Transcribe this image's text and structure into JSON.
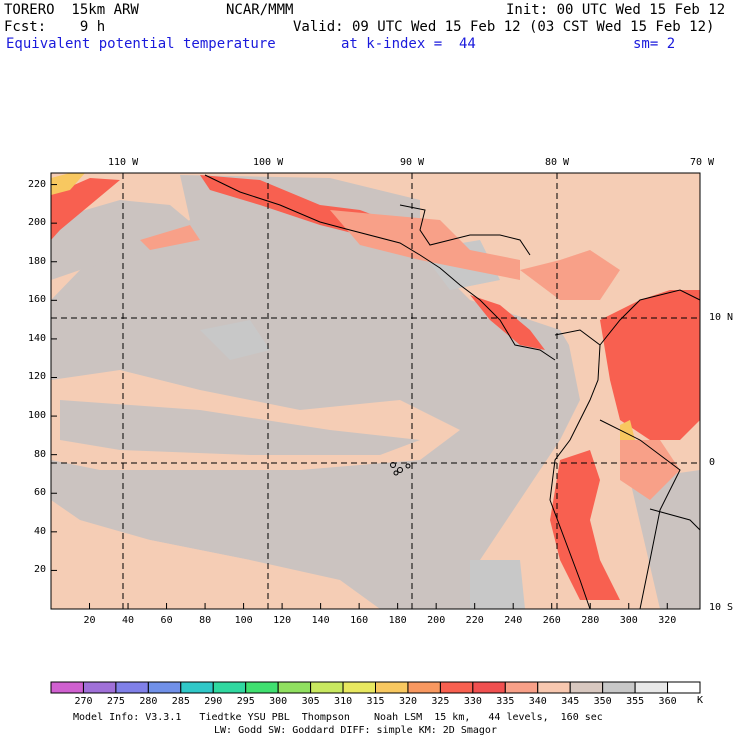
{
  "header": {
    "model": "TORERO  15km ARW",
    "agency": "NCAR/MMM",
    "init": "Init: 00 UTC Wed 15 Feb 12",
    "fcst": "Fcst:    9 h",
    "valid": "Valid: 09 UTC Wed 15 Feb 12 (03 CST Wed 15 Feb 12)",
    "field": "Equivalent potential temperature",
    "level": "at k-index =  44",
    "smooth": "sm= 2"
  },
  "map": {
    "lon_labels": [
      "110 W",
      "100 W",
      "90 W",
      "80 W",
      "70 W"
    ],
    "lat_labels": [
      "10 N",
      "0",
      "10 S"
    ],
    "x_ticks": [
      "20",
      "40",
      "60",
      "80",
      "100",
      "120",
      "140",
      "160",
      "180",
      "200",
      "220",
      "240",
      "260",
      "280",
      "300",
      "320"
    ],
    "y_ticks": [
      "20",
      "40",
      "60",
      "80",
      "100",
      "120",
      "140",
      "160",
      "180",
      "200",
      "220"
    ]
  },
  "colorbar": {
    "labels": [
      "270",
      "275",
      "280",
      "285",
      "290",
      "295",
      "300",
      "305",
      "310",
      "315",
      "320",
      "325",
      "330",
      "335",
      "340",
      "345",
      "350",
      "355",
      "360"
    ],
    "unit": "K",
    "colors": [
      "#d060d0",
      "#a070d8",
      "#8080e8",
      "#7090e8",
      "#30c8c8",
      "#30d8a0",
      "#40e070",
      "#90e060",
      "#c8e860",
      "#e8e860",
      "#f8c860",
      "#f89860",
      "#f86050",
      "#f05050",
      "#f8a088",
      "#f8c8b0",
      "#d8c8c0",
      "#c8c8c8",
      "#e8e8e8",
      "#ffffff"
    ]
  },
  "footer": {
    "line1": "Model Info: V3.3.1   Tiedtke YSU PBL  Thompson    Noah LSM  15 km,   44 levels,  160 sec",
    "line2": "LW: Godd SW: Goddard DIFF: simple KM: 2D Smagor"
  }
}
